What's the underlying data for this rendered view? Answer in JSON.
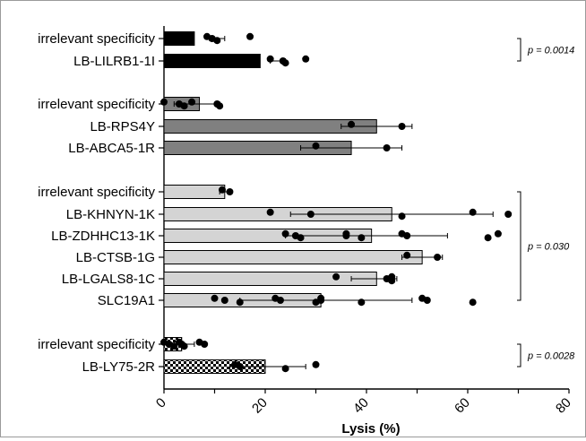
{
  "chart_data": {
    "type": "bar",
    "orientation": "horizontal",
    "xlabel": "Lysis (%)",
    "xlim": [
      0,
      80
    ],
    "xticks": [
      "0",
      "20",
      "40",
      "60",
      "80"
    ],
    "error_bars": true,
    "individual_points": true,
    "groups": [
      {
        "fill": "#000000",
        "pattern": "solid",
        "bars": [
          {
            "label": "irrelevant specificity",
            "value": 6,
            "error_low": 9,
            "error_high": 12,
            "points": [
              8.5,
              9.5,
              10.5,
              17
            ]
          },
          {
            "label": "LB-LILRB1-1I",
            "value": 19,
            "error_low": 21,
            "error_high": 24,
            "points": [
              21,
              23.5,
              24,
              28
            ]
          }
        ],
        "annotation": {
          "text": "p = 0.0014"
        }
      },
      {
        "fill": "#808080",
        "pattern": "solid",
        "bars": [
          {
            "label": "irrelevant specificity",
            "value": 7,
            "error_low": 2,
            "error_high": 11,
            "points": [
              0,
              3,
              4,
              5.5,
              10.5,
              11
            ]
          },
          {
            "label": "LB-RPS4Y",
            "value": 42,
            "error_low": 35,
            "error_high": 49,
            "points": [
              37,
              47
            ]
          },
          {
            "label": "LB-ABCA5-1R",
            "value": 37,
            "error_low": 27,
            "error_high": 47,
            "points": [
              30,
              44
            ]
          }
        ]
      },
      {
        "fill": "#d4d4d4",
        "pattern": "solid",
        "bars": [
          {
            "label": "irrelevant specificity",
            "value": 12,
            "error_low": 11,
            "error_high": 13,
            "points": [
              11.5,
              13
            ]
          },
          {
            "label": "LB-KHNYN-1K",
            "value": 45,
            "error_low": 25,
            "error_high": 65,
            "points": [
              21,
              29,
              47,
              61,
              68
            ]
          },
          {
            "label": "LB-ZDHHC13-1K",
            "value": 41,
            "error_low": 24,
            "error_high": 56,
            "points": [
              24,
              26,
              27,
              36,
              36,
              39,
              47,
              48,
              64,
              66
            ]
          },
          {
            "label": "LB-CTSB-1G",
            "value": 51,
            "error_low": 47,
            "error_high": 55,
            "points": [
              48,
              54
            ]
          },
          {
            "label": "LB-LGALS8-1C",
            "value": 42,
            "error_low": 37,
            "error_high": 46,
            "points": [
              34,
              44,
              45,
              45
            ]
          },
          {
            "label": "SLC19A1",
            "value": 31,
            "error_low": 15,
            "error_high": 49,
            "points": [
              10,
              12,
              15,
              22,
              23,
              30,
              31,
              31,
              39,
              51,
              52,
              61
            ]
          }
        ],
        "annotation": {
          "text": "p = 0.030"
        }
      },
      {
        "fill": "#ffffff",
        "pattern": "checkerboard",
        "bars": [
          {
            "label": "irrelevant specificity",
            "value": 3.5,
            "error_low": 2,
            "error_high": 6,
            "points": [
              0,
              1,
              2,
              3,
              3.5,
              4,
              7,
              8
            ]
          },
          {
            "label": "LB-LY75-2R",
            "value": 20,
            "error_low": 13,
            "error_high": 28,
            "points": [
              14,
              15,
              24,
              30
            ]
          }
        ],
        "annotation": {
          "text": "p = 0.0028"
        }
      }
    ]
  }
}
